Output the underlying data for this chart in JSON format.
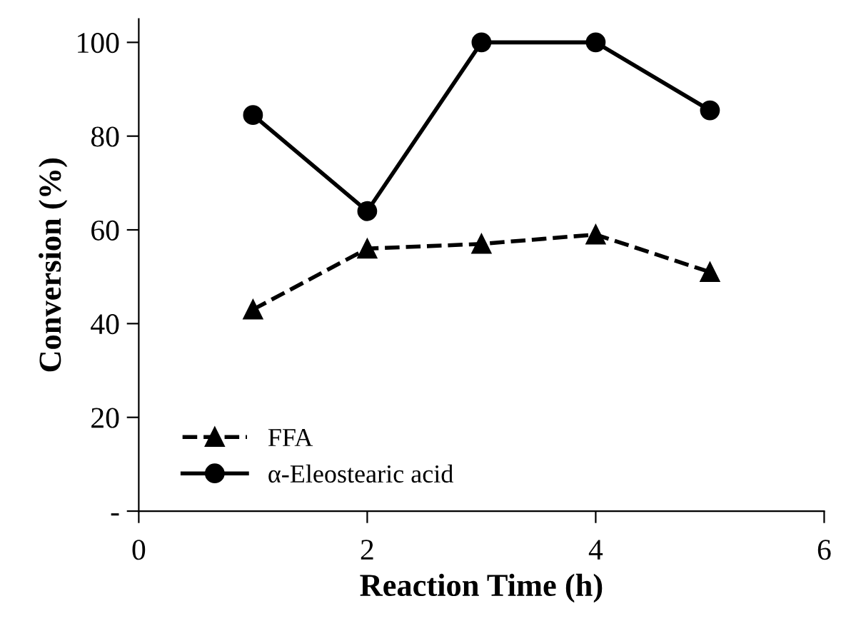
{
  "chart_data": {
    "type": "line",
    "xlabel": "Reaction Time (h)",
    "ylabel": "Conversion (%)",
    "x": [
      1,
      2,
      3,
      4,
      5
    ],
    "series": [
      {
        "name": "FFA",
        "color": "#000000",
        "values": [
          43,
          56,
          57,
          59,
          51
        ],
        "marker": "triangle",
        "line_style": "dashed"
      },
      {
        "name": "α-Eleostearic acid",
        "color": "#000000",
        "values": [
          84.5,
          64,
          100,
          100,
          85.5
        ],
        "marker": "circle",
        "line_style": "solid"
      }
    ],
    "xlim": [
      0,
      6
    ],
    "xticks": [
      0,
      2,
      4,
      6
    ],
    "ylim": [
      0,
      105
    ],
    "yticks": [
      {
        "value": 0,
        "label": "-"
      },
      20,
      40,
      60,
      80,
      100
    ],
    "grid": false,
    "legend": "bottom left"
  }
}
